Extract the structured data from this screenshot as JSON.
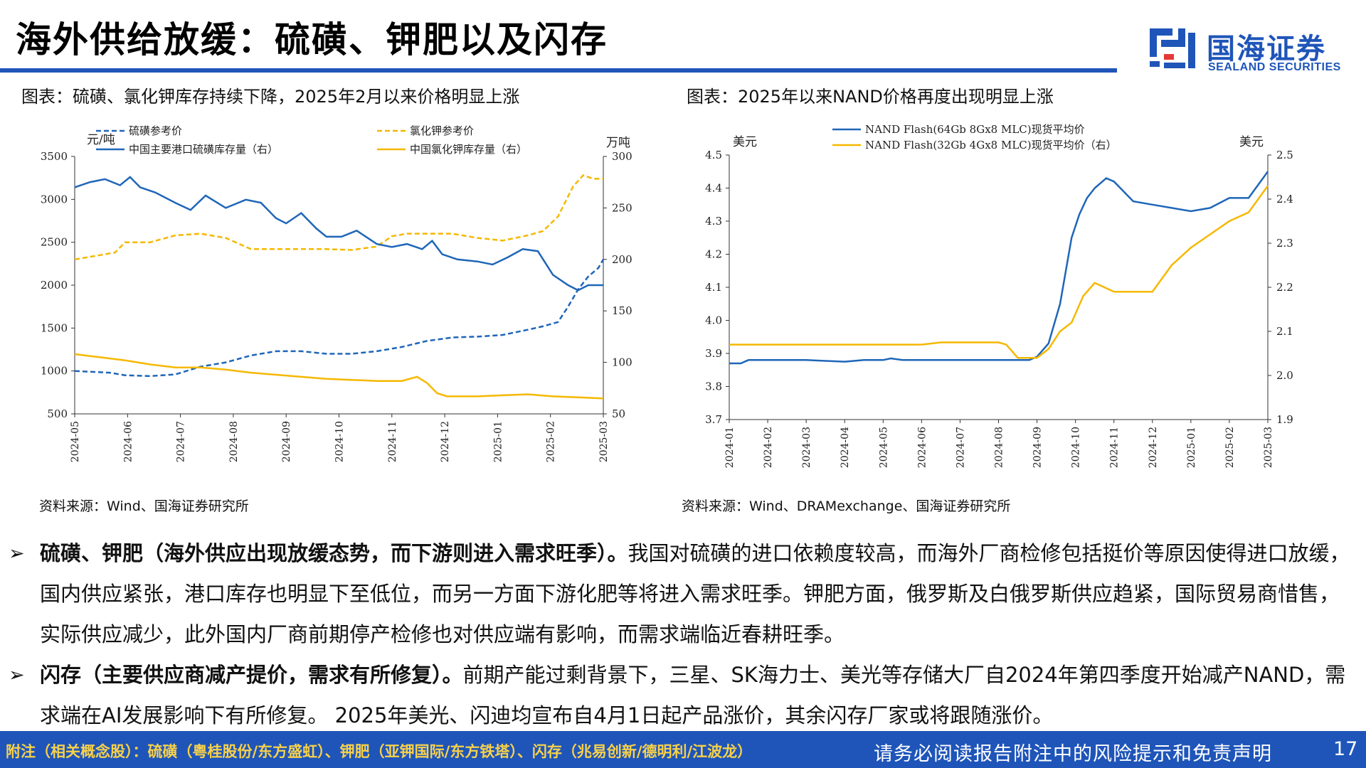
{
  "header": {
    "title": "海外供给放缓：硫磺、钾肥以及闪存",
    "logo_cn": "国海证券",
    "logo_en": "SEALAND SECURITIES"
  },
  "colors": {
    "brand_blue": "#1f55b9",
    "series_blue": "#1f66b8",
    "series_yellow": "#f5b800",
    "footer_highlight": "#f7d14a"
  },
  "left_chart": {
    "caption": "图表：硫磺、氯化钾库存持续下降，2025年2月以来价格明显上涨",
    "source": "资料来源：Wind、国海证券研究所"
  },
  "right_chart": {
    "caption": "图表：2025年以来NAND价格再度出现明显上涨",
    "source": "资料来源：Wind、DRAMexchange、国海证券研究所"
  },
  "chart_data": [
    {
      "type": "line",
      "left_unit": "元/吨",
      "right_unit": "万吨",
      "left_ylim": [
        500,
        3500
      ],
      "left_yticks": [
        500,
        1000,
        1500,
        2000,
        2500,
        3000,
        3500
      ],
      "right_ylim": [
        50,
        300
      ],
      "right_yticks": [
        50,
        100,
        150,
        200,
        250,
        300
      ],
      "x_ticks": [
        "2024-05",
        "2024-06",
        "2024-07",
        "2024-08",
        "2024-09",
        "2024-10",
        "2024-11",
        "2024-12",
        "2025-01",
        "2025-02",
        "2025-03"
      ],
      "x_range": [
        0,
        10.5
      ],
      "legend_position": "top",
      "series": [
        {
          "name": "硫磺参考价",
          "axis": "left",
          "style": "dashed",
          "color": "#1f66b8",
          "x": [
            0,
            0.7,
            1,
            1.5,
            2,
            2.5,
            3,
            3.5,
            4,
            4.5,
            5,
            5.5,
            6,
            6.5,
            7,
            7.5,
            8,
            8.5,
            9,
            9.3,
            9.6,
            9.8,
            10,
            10.2,
            10.4,
            10.5
          ],
          "y": [
            1000,
            980,
            950,
            940,
            960,
            1050,
            1100,
            1180,
            1230,
            1230,
            1200,
            1200,
            1230,
            1280,
            1350,
            1390,
            1400,
            1420,
            1480,
            1520,
            1570,
            1750,
            1950,
            2100,
            2200,
            2300
          ]
        },
        {
          "name": "氯化钾参考价",
          "axis": "left",
          "style": "dashed",
          "color": "#f5b800",
          "x": [
            0,
            0.5,
            0.8,
            1,
            1.5,
            2,
            2.5,
            3,
            3.5,
            4,
            4.5,
            5,
            5.5,
            6,
            6.3,
            6.6,
            7,
            7.5,
            8,
            8.5,
            9,
            9.3,
            9.6,
            9.9,
            10.1,
            10.3,
            10.5
          ],
          "y": [
            2300,
            2350,
            2380,
            2500,
            2500,
            2580,
            2600,
            2550,
            2420,
            2420,
            2420,
            2420,
            2410,
            2450,
            2570,
            2600,
            2600,
            2600,
            2550,
            2520,
            2580,
            2630,
            2800,
            3150,
            3280,
            3240,
            3240
          ]
        },
        {
          "name": "中国主要港口硫磺库存量（右）",
          "axis": "right",
          "style": "solid",
          "color": "#1f66b8",
          "x": [
            0,
            0.3,
            0.6,
            0.9,
            1.1,
            1.3,
            1.6,
            2,
            2.3,
            2.6,
            3,
            3.4,
            3.7,
            4,
            4.2,
            4.5,
            4.8,
            5,
            5.3,
            5.6,
            6,
            6.3,
            6.6,
            6.9,
            7.1,
            7.3,
            7.6,
            8,
            8.3,
            8.6,
            8.9,
            9.2,
            9.5,
            9.8,
            10,
            10.2,
            10.5
          ],
          "y": [
            270,
            275,
            278,
            272,
            280,
            270,
            265,
            255,
            248,
            262,
            250,
            258,
            255,
            240,
            235,
            245,
            230,
            222,
            222,
            228,
            215,
            212,
            215,
            210,
            218,
            205,
            200,
            198,
            195,
            202,
            210,
            208,
            185,
            175,
            170,
            175,
            175
          ]
        },
        {
          "name": "中国氯化钾库存量（右）",
          "axis": "right",
          "style": "solid",
          "color": "#f5b800",
          "x": [
            0,
            0.5,
            1,
            1.5,
            2,
            2.5,
            3,
            3.5,
            4,
            4.5,
            5,
            5.5,
            6,
            6.5,
            6.8,
            7,
            7.2,
            7.4,
            7.7,
            8,
            8.5,
            9,
            9.5,
            10,
            10.5
          ],
          "y": [
            108,
            105,
            102,
            98,
            95,
            95,
            93,
            90,
            88,
            86,
            84,
            83,
            82,
            82,
            86,
            80,
            70,
            67,
            67,
            67,
            68,
            69,
            67,
            66,
            65
          ]
        }
      ]
    },
    {
      "type": "line",
      "left_unit": "美元",
      "right_unit": "美元",
      "left_ylim": [
        3.7,
        4.5
      ],
      "left_yticks": [
        3.7,
        3.8,
        3.9,
        4.0,
        4.1,
        4.2,
        4.3,
        4.4,
        4.5
      ],
      "right_ylim": [
        1.9,
        2.5
      ],
      "right_yticks": [
        1.9,
        2.0,
        2.1,
        2.2,
        2.3,
        2.4,
        2.5
      ],
      "x_ticks": [
        "2024-01",
        "2024-02",
        "2024-03",
        "2024-04",
        "2024-05",
        "2024-06",
        "2024-07",
        "2024-08",
        "2024-09",
        "2024-10",
        "2024-11",
        "2024-12",
        "2025-01",
        "2025-02",
        "2025-03"
      ],
      "x_range": [
        0,
        14
      ],
      "legend_position": "top",
      "series": [
        {
          "name": "NAND Flash(64Gb 8Gx8 MLC)现货平均价",
          "axis": "left",
          "color": "#1f66b8",
          "x": [
            0,
            0.3,
            0.5,
            1,
            2,
            3,
            3.5,
            4,
            4.2,
            4.5,
            5,
            6,
            7,
            7.5,
            7.8,
            8,
            8.3,
            8.6,
            8.9,
            9.1,
            9.3,
            9.5,
            9.8,
            10,
            10.5,
            11,
            11.5,
            12,
            12.5,
            13,
            13.5,
            14
          ],
          "y": [
            3.87,
            3.87,
            3.88,
            3.88,
            3.88,
            3.875,
            3.88,
            3.88,
            3.885,
            3.88,
            3.88,
            3.88,
            3.88,
            3.88,
            3.88,
            3.89,
            3.93,
            4.05,
            4.25,
            4.32,
            4.37,
            4.4,
            4.43,
            4.42,
            4.36,
            4.35,
            4.34,
            4.33,
            4.34,
            4.37,
            4.37,
            4.45
          ]
        },
        {
          "name": "NAND Flash(32Gb 4Gx8 MLC)现货平均价（右）",
          "axis": "right",
          "color": "#f5b800",
          "x": [
            0,
            1,
            2,
            3,
            4,
            5,
            5.5,
            6,
            7,
            7.2,
            7.5,
            8,
            8.3,
            8.6,
            8.9,
            9.2,
            9.5,
            10,
            10.5,
            11,
            11.5,
            12,
            12.5,
            13,
            13.5,
            14
          ],
          "y": [
            2.07,
            2.07,
            2.07,
            2.07,
            2.07,
            2.07,
            2.075,
            2.075,
            2.075,
            2.07,
            2.04,
            2.04,
            2.06,
            2.1,
            2.12,
            2.18,
            2.21,
            2.19,
            2.19,
            2.19,
            2.25,
            2.29,
            2.32,
            2.35,
            2.37,
            2.43
          ]
        }
      ]
    }
  ],
  "bullets": [
    {
      "heading": "硫磺、钾肥（海外供应出现放缓态势，而下游则进入需求旺季）。",
      "body": "我国对硫磺的进口依赖度较高，而海外厂商检修包括挺价等原因使得进口放缓，国内供应紧张，港口库存也明显下至低位，而另一方面下游化肥等将进入需求旺季。钾肥方面，俄罗斯及白俄罗斯供应趋紧，国际贸易商惜售，实际供应减少，此外国内厂商前期停产检修也对供应端有影响，而需求端临近春耕旺季。"
    },
    {
      "heading": "闪存（主要供应商减产提价，需求有所修复）。",
      "body": "前期产能过剩背景下，三星、SK海力士、美光等存储大厂自2024年第四季度开始减产NAND，需求端在AI发展影响下有所修复。 2025年美光、闪迪均宣布自4月1日起产品涨价，其余闪存厂家或将跟随涨价。"
    }
  ],
  "footer": {
    "related": "附注（相关概念股）：硫磺（粤桂股份/东方盛虹）、钾肥（亚钾国际/东方铁塔）、闪存（兆易创新/德明利/江波龙）",
    "disclaimer": "请务必阅读报告附注中的风险提示和免责声明",
    "page": "17"
  }
}
